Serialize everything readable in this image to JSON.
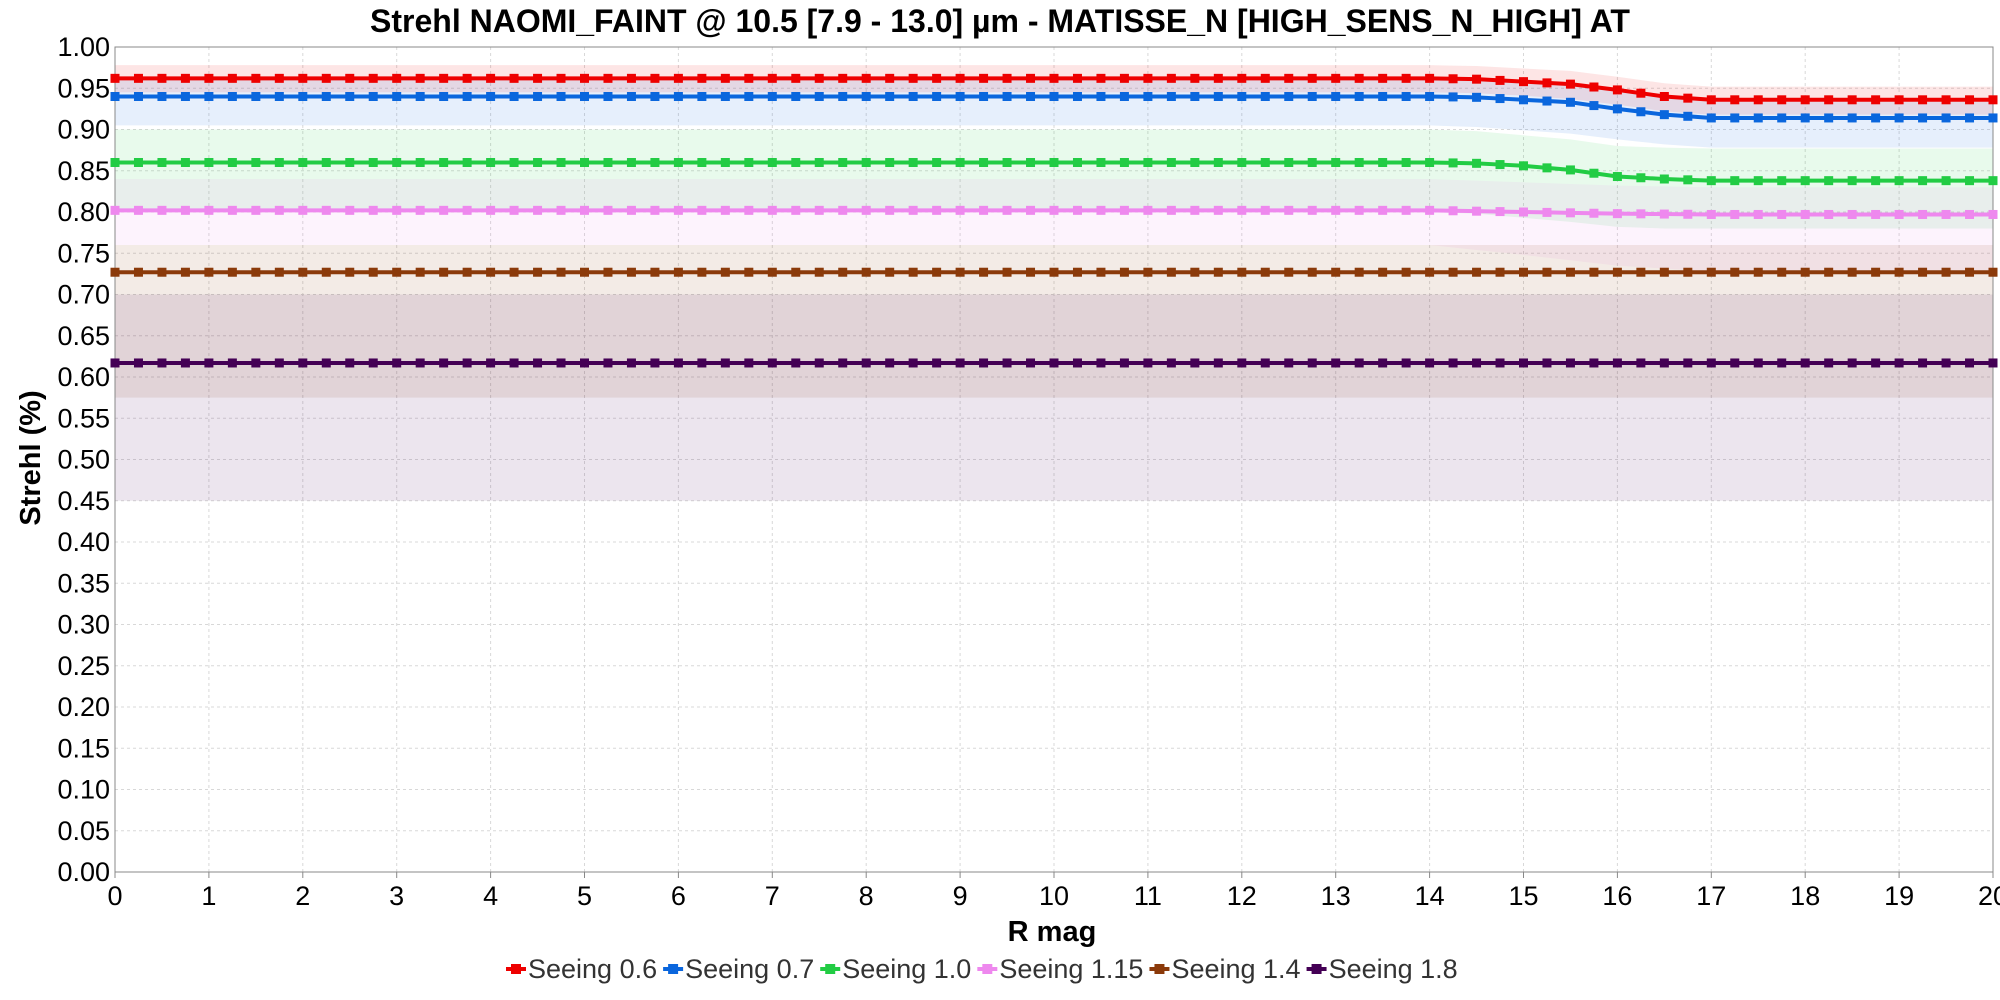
{
  "chart_data": {
    "type": "line",
    "title": "Strehl NAOMI_FAINT @ 10.5 [7.9 - 13.0] µm - MATISSE_N [HIGH_SENS_N_HIGH] AT",
    "xlabel": "R mag",
    "ylabel": "Strehl (%)",
    "xlim": [
      0,
      20
    ],
    "ylim": [
      0,
      1
    ],
    "x_ticks": [
      "0",
      "1",
      "2",
      "3",
      "4",
      "5",
      "6",
      "7",
      "8",
      "9",
      "10",
      "11",
      "12",
      "13",
      "14",
      "15",
      "16",
      "17",
      "18",
      "19",
      "20"
    ],
    "y_ticks": [
      "0.00",
      "0.05",
      "0.10",
      "0.15",
      "0.20",
      "0.25",
      "0.30",
      "0.35",
      "0.40",
      "0.45",
      "0.50",
      "0.55",
      "0.60",
      "0.65",
      "0.70",
      "0.75",
      "0.80",
      "0.85",
      "0.90",
      "0.95",
      "1.00"
    ],
    "grid": true,
    "legend_position": "bottom",
    "series": [
      {
        "name": "Seeing 0.6",
        "color": "#ee0000",
        "x": [
          0,
          14,
          14.5,
          15,
          15.5,
          16,
          16.5,
          17,
          20
        ],
        "y": [
          0.962,
          0.962,
          0.961,
          0.958,
          0.955,
          0.948,
          0.94,
          0.936,
          0.936
        ],
        "band_lower": [
          0.945,
          0.945,
          0.944,
          0.941,
          0.937,
          0.93,
          0.922,
          0.918,
          0.918
        ],
        "band_upper": [
          0.978,
          0.978,
          0.977,
          0.974,
          0.971,
          0.964,
          0.956,
          0.952,
          0.952
        ]
      },
      {
        "name": "Seeing 0.7",
        "color": "#0a66dd",
        "x": [
          0,
          14,
          14.5,
          15,
          15.5,
          16,
          16.5,
          17,
          20
        ],
        "y": [
          0.94,
          0.94,
          0.939,
          0.936,
          0.933,
          0.925,
          0.918,
          0.914,
          0.914
        ],
        "band_lower": [
          0.905,
          0.905,
          0.903,
          0.899,
          0.895,
          0.888,
          0.882,
          0.878,
          0.878
        ],
        "band_upper": [
          0.962,
          0.962,
          0.961,
          0.958,
          0.955,
          0.948,
          0.942,
          0.938,
          0.938
        ]
      },
      {
        "name": "Seeing 1.0",
        "color": "#22cc44",
        "x": [
          0,
          14,
          14.5,
          15,
          15.5,
          16,
          16.5,
          17,
          20
        ],
        "y": [
          0.86,
          0.86,
          0.859,
          0.856,
          0.851,
          0.843,
          0.84,
          0.838,
          0.838
        ],
        "band_lower": [
          0.8,
          0.8,
          0.798,
          0.793,
          0.788,
          0.782,
          0.78,
          0.78,
          0.78
        ],
        "band_upper": [
          0.9,
          0.9,
          0.898,
          0.893,
          0.888,
          0.88,
          0.878,
          0.877,
          0.877
        ]
      },
      {
        "name": "Seeing 1.15",
        "color": "#ee88ee",
        "x": [
          0,
          14,
          15,
          16,
          17,
          20
        ],
        "y": [
          0.802,
          0.802,
          0.8,
          0.798,
          0.797,
          0.797
        ],
        "band_lower": [
          0.76,
          0.76,
          0.748,
          0.735,
          0.728,
          0.728
        ],
        "band_upper": [
          0.84,
          0.84,
          0.836,
          0.832,
          0.83,
          0.83
        ]
      },
      {
        "name": "Seeing 1.4",
        "color": "#8b3a0a",
        "x": [
          0,
          20
        ],
        "y": [
          0.727,
          0.727
        ],
        "band_lower": [
          0.575,
          0.575
        ],
        "band_upper": [
          0.76,
          0.76
        ]
      },
      {
        "name": "Seeing 1.8",
        "color": "#440055",
        "x": [
          0,
          20
        ],
        "y": [
          0.617,
          0.617
        ],
        "band_lower": [
          0.45,
          0.45
        ],
        "band_upper": [
          0.7,
          0.7
        ]
      }
    ]
  }
}
